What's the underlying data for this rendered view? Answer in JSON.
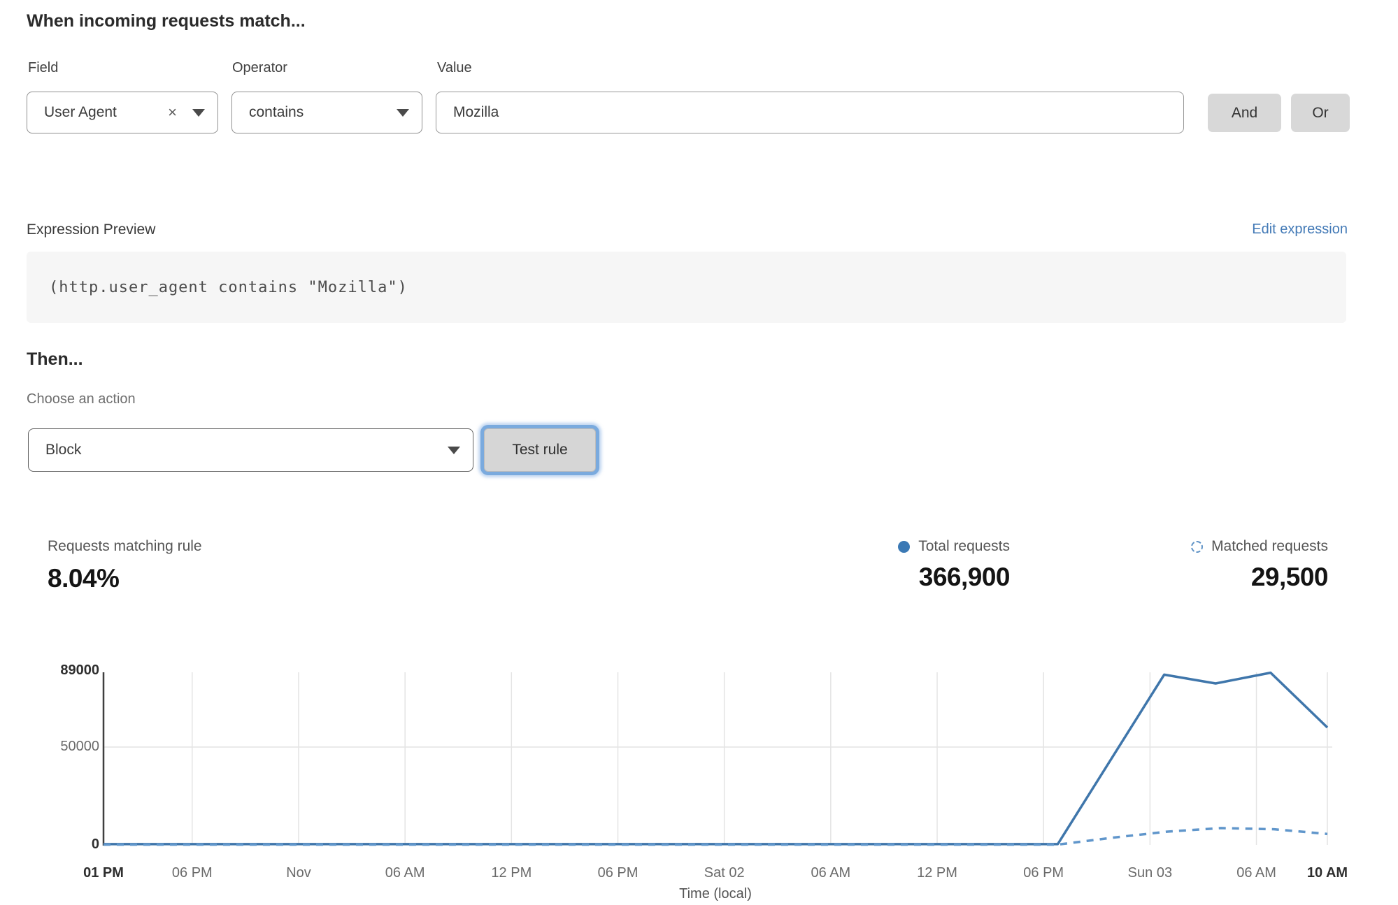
{
  "rule_builder": {
    "heading": "When incoming requests match...",
    "field": {
      "label": "Field",
      "value": "User Agent",
      "clear_icon": "×"
    },
    "operator": {
      "label": "Operator",
      "value": "contains"
    },
    "value": {
      "label": "Value",
      "value": "Mozilla"
    },
    "and_label": "And",
    "or_label": "Or"
  },
  "expression": {
    "label": "Expression Preview",
    "edit_link": "Edit expression",
    "code": "(http.user_agent contains \"Mozilla\")"
  },
  "action": {
    "heading": "Then...",
    "label": "Choose an action",
    "value": "Block",
    "test_button": "Test rule"
  },
  "stats": {
    "matching": {
      "label": "Requests matching rule",
      "value": "8.04%"
    },
    "total": {
      "label": "Total requests",
      "value": "366,900"
    },
    "matched": {
      "label": "Matched requests",
      "value": "29,500"
    }
  },
  "colors": {
    "total_line": "#3f76ab",
    "matched_line": "#6096cb",
    "link_blue": "#4279b6",
    "focus_ring_blue": "#7aaade",
    "button_gray": "#d8d8d8",
    "gridline": "#e4e4e4",
    "axis": "#3f3f3f"
  },
  "chart_data": {
    "type": "line",
    "title": "",
    "xlabel": "Time (local)",
    "ylabel": "",
    "ylim": [
      0,
      89000
    ],
    "grid": "vertical lines at each x tick, horizontal line at 50000",
    "legend_position": "top-right above chart (Total requests = solid dot, Matched requests = dashed circle)",
    "x_total_hours": 69,
    "yticks": [
      {
        "value": 89000,
        "label": "89000",
        "bold": true
      },
      {
        "value": 50000,
        "label": "50000",
        "bold": false
      },
      {
        "value": 0,
        "label": "0",
        "bold": true
      }
    ],
    "xticks": [
      {
        "hour": 0,
        "label": "01 PM",
        "bold": true
      },
      {
        "hour": 5,
        "label": "06 PM",
        "bold": false
      },
      {
        "hour": 11,
        "label": "Nov",
        "bold": false
      },
      {
        "hour": 17,
        "label": "06 AM",
        "bold": false
      },
      {
        "hour": 23,
        "label": "12 PM",
        "bold": false
      },
      {
        "hour": 29,
        "label": "06 PM",
        "bold": false
      },
      {
        "hour": 35,
        "label": "Sat 02",
        "bold": false
      },
      {
        "hour": 41,
        "label": "06 AM",
        "bold": false
      },
      {
        "hour": 47,
        "label": "12 PM",
        "bold": false
      },
      {
        "hour": 53,
        "label": "06 PM",
        "bold": false
      },
      {
        "hour": 59,
        "label": "Sun 03",
        "bold": false
      },
      {
        "hour": 65,
        "label": "06 AM",
        "bold": false
      },
      {
        "hour": 69,
        "label": "10 AM",
        "bold": true
      }
    ],
    "series": [
      {
        "name": "Total requests",
        "style": "solid",
        "color": "#3f76ab",
        "points": [
          [
            0,
            400
          ],
          [
            10,
            400
          ],
          [
            20,
            400
          ],
          [
            30,
            400
          ],
          [
            40,
            400
          ],
          [
            50,
            400
          ],
          [
            53.8,
            400
          ],
          [
            59.8,
            87000
          ],
          [
            62.7,
            82500
          ],
          [
            65.8,
            88000
          ],
          [
            69,
            60000
          ]
        ]
      },
      {
        "name": "Matched requests",
        "style": "dashed",
        "color": "#6096cb",
        "points": [
          [
            0,
            150
          ],
          [
            10,
            150
          ],
          [
            20,
            150
          ],
          [
            30,
            150
          ],
          [
            40,
            150
          ],
          [
            50,
            150
          ],
          [
            53.8,
            150
          ],
          [
            57,
            3800
          ],
          [
            60,
            6800
          ],
          [
            63,
            8600
          ],
          [
            66,
            8000
          ],
          [
            69,
            5600
          ]
        ]
      }
    ]
  }
}
